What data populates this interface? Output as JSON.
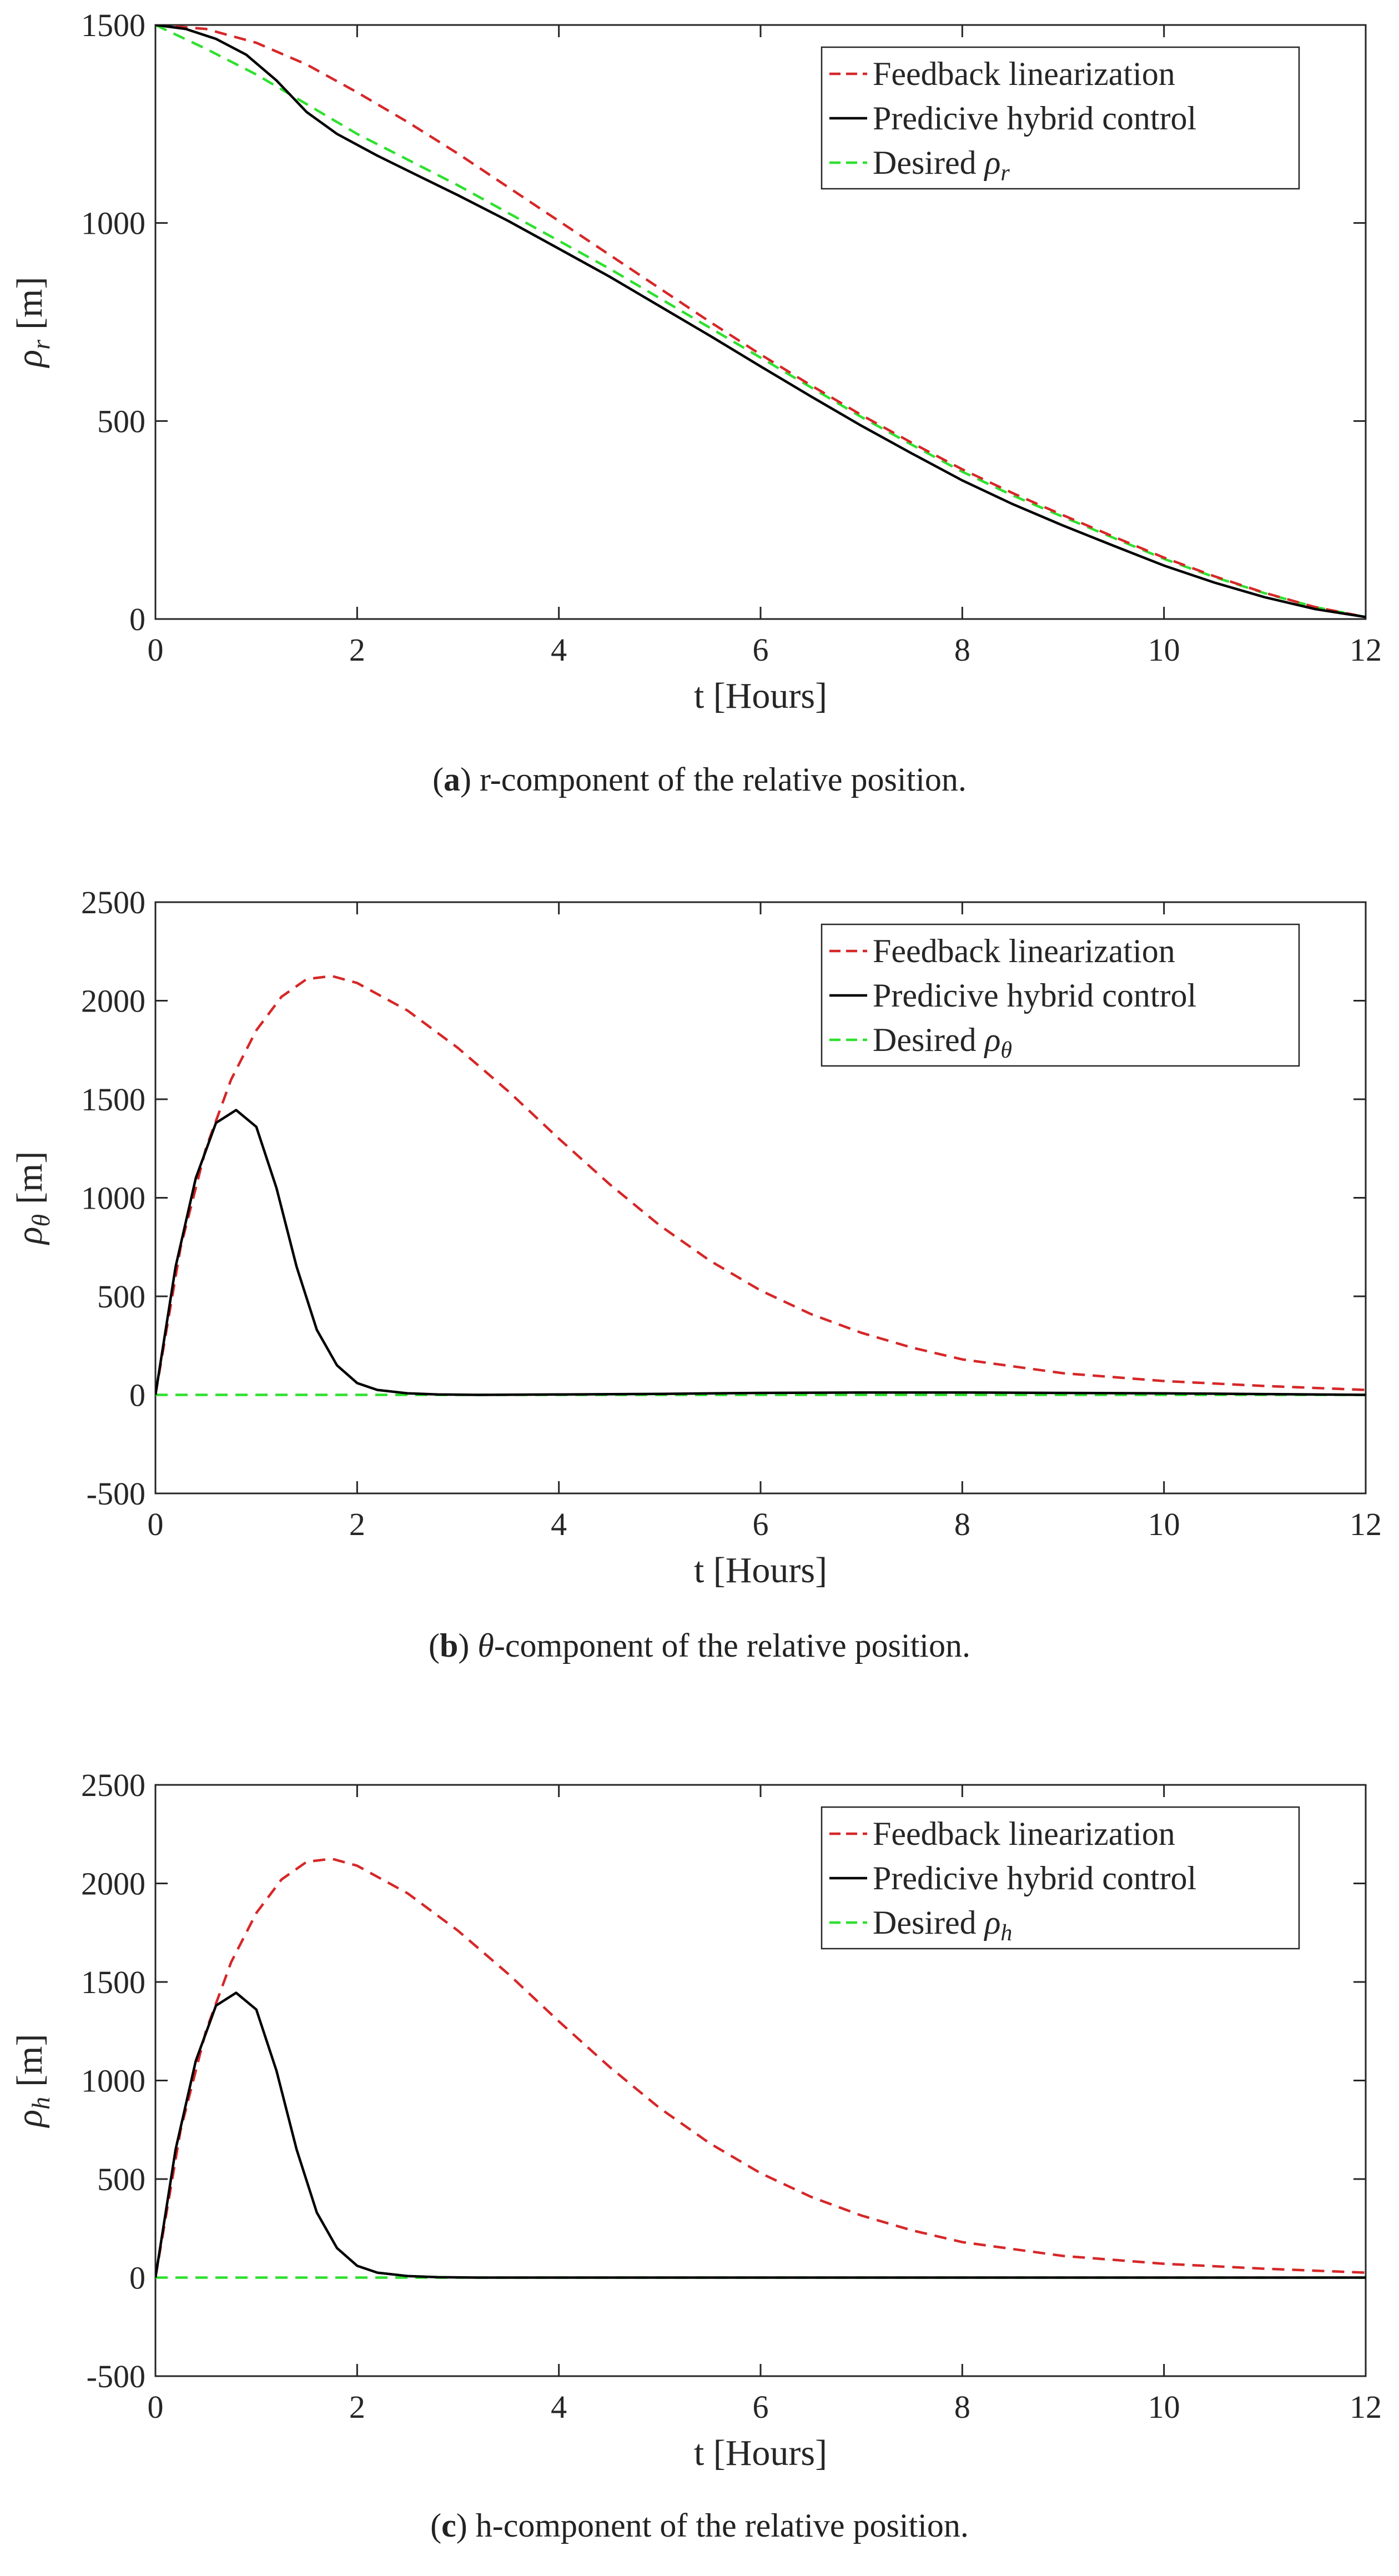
{
  "chart_data": [
    {
      "id": "a",
      "type": "line",
      "xlabel": "t [Hours]",
      "ylabel_symbol": "ρ",
      "ylabel_sub": "r",
      "ylabel_unit": "[m]",
      "xlim": [
        0,
        12
      ],
      "ylim": [
        0,
        1500
      ],
      "xticks": [
        0,
        2,
        4,
        6,
        8,
        10,
        12
      ],
      "yticks": [
        0,
        500,
        1000,
        1500
      ],
      "legend_position": "top-right",
      "legend": [
        "Feedback linearization",
        "Predicive hybrid control",
        "Desired ρ"
      ],
      "legend_sub": "r",
      "series": [
        {
          "name": "Feedback linearization",
          "color": "#d62728",
          "dash": "dashed",
          "x": [
            0,
            0.5,
            1,
            1.5,
            2,
            2.5,
            3,
            3.5,
            4,
            4.5,
            5,
            5.5,
            6,
            6.5,
            7,
            7.5,
            8,
            8.5,
            9,
            9.5,
            10,
            10.5,
            11,
            11.5,
            12
          ],
          "y": [
            1500,
            1490,
            1455,
            1400,
            1330,
            1255,
            1175,
            1090,
            1005,
            920,
            835,
            750,
            668,
            590,
            515,
            445,
            378,
            318,
            262,
            208,
            155,
            108,
            66,
            30,
            5
          ]
        },
        {
          "name": "Predicive hybrid control",
          "color": "#000000",
          "dash": "solid",
          "x": [
            0,
            0.3,
            0.6,
            0.9,
            1.2,
            1.5,
            1.8,
            2.2,
            2.6,
            3,
            3.5,
            4,
            4.5,
            5,
            5.5,
            6,
            6.5,
            7,
            7.5,
            8,
            8.5,
            9,
            9.5,
            10,
            10.5,
            11,
            11.5,
            12
          ],
          "y": [
            1500,
            1490,
            1465,
            1425,
            1360,
            1280,
            1225,
            1170,
            1120,
            1070,
            1005,
            935,
            865,
            790,
            715,
            638,
            562,
            488,
            418,
            350,
            290,
            236,
            185,
            135,
            92,
            55,
            25,
            5
          ]
        },
        {
          "name": "Desired ρr",
          "color": "#2ee02e",
          "dash": "dashed",
          "x": [
            0,
            0.5,
            1,
            1.5,
            2,
            2.5,
            3,
            3.5,
            4,
            4.5,
            5,
            5.5,
            6,
            6.5,
            7,
            7.5,
            8,
            8.5,
            9,
            9.5,
            10,
            10.5,
            11,
            11.5,
            12
          ],
          "y": [
            1500,
            1440,
            1375,
            1300,
            1225,
            1160,
            1095,
            1025,
            955,
            885,
            810,
            735,
            660,
            585,
            510,
            440,
            372,
            312,
            258,
            205,
            152,
            106,
            65,
            30,
            5
          ]
        }
      ]
    },
    {
      "id": "b",
      "type": "line",
      "xlabel": "t [Hours]",
      "ylabel_symbol": "ρ",
      "ylabel_sub": "θ",
      "ylabel_unit": "[m]",
      "xlim": [
        0,
        12
      ],
      "ylim": [
        -500,
        2500
      ],
      "xticks": [
        0,
        2,
        4,
        6,
        8,
        10,
        12
      ],
      "yticks": [
        -500,
        0,
        500,
        1000,
        1500,
        2000,
        2500
      ],
      "legend_position": "top-right",
      "legend": [
        "Feedback linearization",
        "Predicive hybrid control",
        "Desired ρ"
      ],
      "legend_sub": "θ",
      "series": [
        {
          "name": "Feedback linearization",
          "color": "#d62728",
          "dash": "dashed",
          "x": [
            0,
            0.25,
            0.5,
            0.75,
            1,
            1.25,
            1.5,
            1.75,
            2,
            2.5,
            3,
            3.5,
            4,
            4.5,
            5,
            5.5,
            6,
            6.5,
            7,
            7.5,
            8,
            9,
            10,
            11,
            12
          ],
          "y": [
            0,
            750,
            1250,
            1600,
            1850,
            2020,
            2110,
            2125,
            2090,
            1950,
            1760,
            1540,
            1300,
            1070,
            860,
            680,
            530,
            410,
            315,
            240,
            180,
            110,
            70,
            45,
            25
          ]
        },
        {
          "name": "Predicive hybrid control",
          "color": "#000000",
          "dash": "solid",
          "x": [
            0,
            0.2,
            0.4,
            0.6,
            0.8,
            1,
            1.2,
            1.4,
            1.6,
            1.8,
            2,
            2.2,
            2.5,
            2.8,
            3.2,
            4,
            5,
            6,
            7,
            8,
            9,
            10,
            11,
            12
          ],
          "y": [
            0,
            650,
            1100,
            1380,
            1445,
            1360,
            1050,
            650,
            330,
            150,
            60,
            25,
            8,
            2,
            0,
            2,
            5,
            10,
            12,
            12,
            10,
            8,
            4,
            0
          ]
        },
        {
          "name": "Desired ρθ",
          "color": "#2ee02e",
          "dash": "dashed",
          "x": [
            0,
            12
          ],
          "y": [
            0,
            0
          ]
        }
      ]
    },
    {
      "id": "c",
      "type": "line",
      "xlabel": "t [Hours]",
      "ylabel_symbol": "ρ",
      "ylabel_sub": "h",
      "ylabel_unit": "[m]",
      "xlim": [
        0,
        12
      ],
      "ylim": [
        -500,
        2500
      ],
      "xticks": [
        0,
        2,
        4,
        6,
        8,
        10,
        12
      ],
      "yticks": [
        -500,
        0,
        500,
        1000,
        1500,
        2000,
        2500
      ],
      "legend_position": "top-right",
      "legend": [
        "Feedback linearization",
        "Predicive hybrid control",
        "Desired ρ"
      ],
      "legend_sub": "h",
      "series": [
        {
          "name": "Feedback linearization",
          "color": "#d62728",
          "dash": "dashed",
          "x": [
            0,
            0.25,
            0.5,
            0.75,
            1,
            1.25,
            1.5,
            1.75,
            2,
            2.5,
            3,
            3.5,
            4,
            4.5,
            5,
            5.5,
            6,
            6.5,
            7,
            7.5,
            8,
            9,
            10,
            11,
            12
          ],
          "y": [
            0,
            750,
            1250,
            1600,
            1850,
            2020,
            2110,
            2125,
            2090,
            1950,
            1760,
            1540,
            1300,
            1070,
            860,
            680,
            530,
            410,
            315,
            240,
            180,
            110,
            70,
            45,
            25
          ]
        },
        {
          "name": "Predicive hybrid control",
          "color": "#000000",
          "dash": "solid",
          "x": [
            0,
            0.2,
            0.4,
            0.6,
            0.8,
            1,
            1.2,
            1.4,
            1.6,
            1.8,
            2,
            2.2,
            2.5,
            2.8,
            3.2,
            4,
            5,
            6,
            7,
            8,
            9,
            10,
            11,
            12
          ],
          "y": [
            0,
            650,
            1100,
            1380,
            1445,
            1360,
            1050,
            650,
            330,
            150,
            60,
            25,
            8,
            2,
            0,
            0,
            0,
            0,
            0,
            0,
            0,
            0,
            0,
            0
          ]
        },
        {
          "name": "Desired ρh",
          "color": "#2ee02e",
          "dash": "dashed",
          "x": [
            0,
            12
          ],
          "y": [
            0,
            0
          ]
        }
      ]
    }
  ],
  "captions": [
    {
      "label": "a",
      "text": " r-component of the relative position."
    },
    {
      "label": "b",
      "symbol": "θ",
      "text": "-component of the relative position."
    },
    {
      "label": "c",
      "text": " h-component of the relative position."
    }
  ]
}
